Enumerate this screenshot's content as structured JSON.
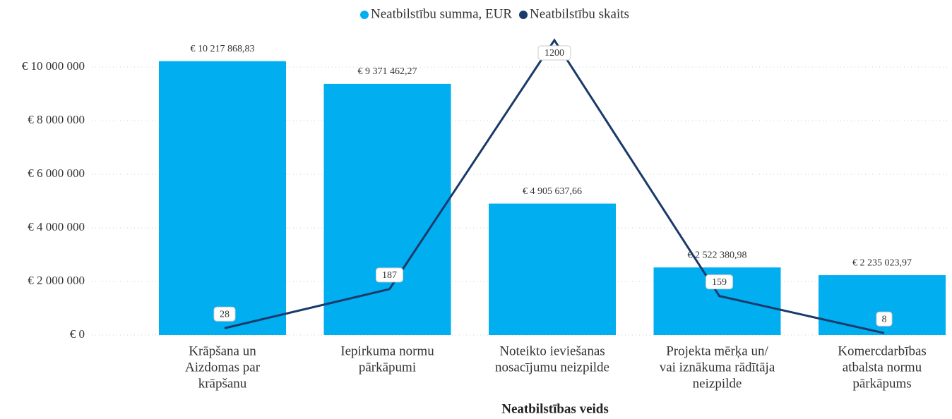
{
  "chart_data": {
    "type": "bar_line",
    "x_label": "Neatbilstības veids",
    "categories": [
      [
        "Krāpšana un",
        "Aizdomas par",
        "krāpšanu"
      ],
      [
        "Iepirkuma normu",
        "pārkāpumi"
      ],
      [
        "Noteikto ieviešanas",
        "nosacījumu neizpilde"
      ],
      [
        "Projekta mērķa un/",
        "vai iznākuma rādītāja",
        "neizpilde"
      ],
      [
        "Komercdarbības",
        "atbalsta normu",
        "pārkāpums"
      ]
    ],
    "series": [
      {
        "name": "Neatbilstību summa, EUR",
        "type": "bar",
        "color": "#01aef0",
        "values": [
          10217868.83,
          9371462.27,
          4905637.66,
          2522380.98,
          2235023.97
        ],
        "value_labels": [
          "€ 10 217 868,83",
          "€ 9 371 462,27",
          "€ 4 905 637,66",
          "€ 2 522 380,98",
          "€ 2 235 023,97"
        ]
      },
      {
        "name": "Neatbilstību skaits",
        "type": "line",
        "color": "#1a3a6b",
        "axis": "y2",
        "values": [
          28,
          187,
          1200,
          159,
          8
        ]
      }
    ],
    "ylim": [
      0,
      11000000
    ],
    "yticks": [
      {
        "value": 0,
        "label": "€ 0"
      },
      {
        "value": 2000000,
        "label": "€ 2 000 000"
      },
      {
        "value": 4000000,
        "label": "€ 4 000 000"
      },
      {
        "value": 6000000,
        "label": "€ 6 000 000"
      },
      {
        "value": 8000000,
        "label": "€ 8 000 000"
      },
      {
        "value": 10000000,
        "label": "€ 10 000 000"
      }
    ],
    "y2lim": [
      0,
      1200
    ],
    "grid": true,
    "legend": "top"
  }
}
